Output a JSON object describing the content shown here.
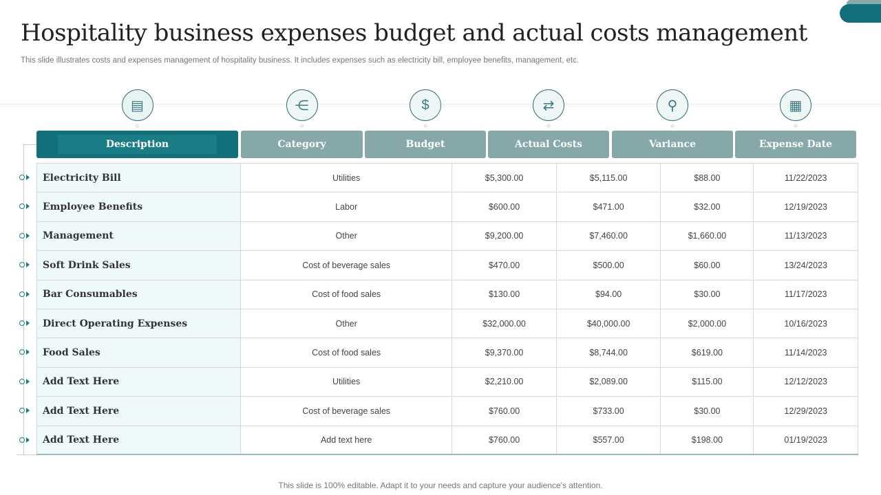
{
  "title": "Hospitality business expenses budget and actual costs management",
  "subtitle": "This slide illustrates costs and expenses management of hospitality business. It includes expenses such as electricity bill, employee benefits, management, etc.",
  "footer": "This slide is 100% editable. Adapt it to your needs and capture your audience's attention.",
  "accent": "#11707a",
  "header_color": "#86a8a9",
  "columns": [
    {
      "label": "Description",
      "icon": "document-icon"
    },
    {
      "label": "Category",
      "icon": "hierarchy-icon"
    },
    {
      "label": "Budget",
      "icon": "money-bag-icon"
    },
    {
      "label": "Actual Costs",
      "icon": "currency-exchange-icon"
    },
    {
      "label": "Variance",
      "icon": "analytics-icon"
    },
    {
      "label": "Expense Date",
      "icon": "calendar-icon"
    }
  ],
  "rows": [
    [
      "Electricity Bill",
      "Utilities",
      "$5,300.00",
      "$5,115.00",
      "$88.00",
      "11/22/2023"
    ],
    [
      "Employee Benefits",
      "Labor",
      "$600.00",
      "$471.00",
      "$32.00",
      "12/19/2023"
    ],
    [
      "Management",
      "Other",
      "$9,200.00",
      "$7,460.00",
      "$1,660.00",
      "11/13/2023"
    ],
    [
      "Soft Drink Sales",
      "Cost of beverage  sales",
      "$470.00",
      "$500.00",
      "$60.00",
      "13/24/2023"
    ],
    [
      "Bar Consumables",
      "Cost of food sales",
      "$130.00",
      "$94.00",
      "$30.00",
      "11/17/2023"
    ],
    [
      "Direct Operating Expenses",
      "Other",
      "$32,000.00",
      "$40,000.00",
      "$2,000.00",
      "10/16/2023"
    ],
    [
      "Food Sales",
      "Cost of food sales",
      "$9,370.00",
      "$8,744.00",
      "$619.00",
      "11/14/2023"
    ],
    [
      "Add Text Here",
      "Utilities",
      "$2,210.00",
      "$2,089.00",
      "$115.00",
      "12/12/2023"
    ],
    [
      "Add Text Here",
      "Cost of beverage  sales",
      "$760.00",
      "$733.00",
      "$30.00",
      "12/29/2023"
    ],
    [
      "Add Text Here",
      "Add text here",
      "$760.00",
      "$557.00",
      "$198.00",
      "01/19/2023"
    ]
  ]
}
